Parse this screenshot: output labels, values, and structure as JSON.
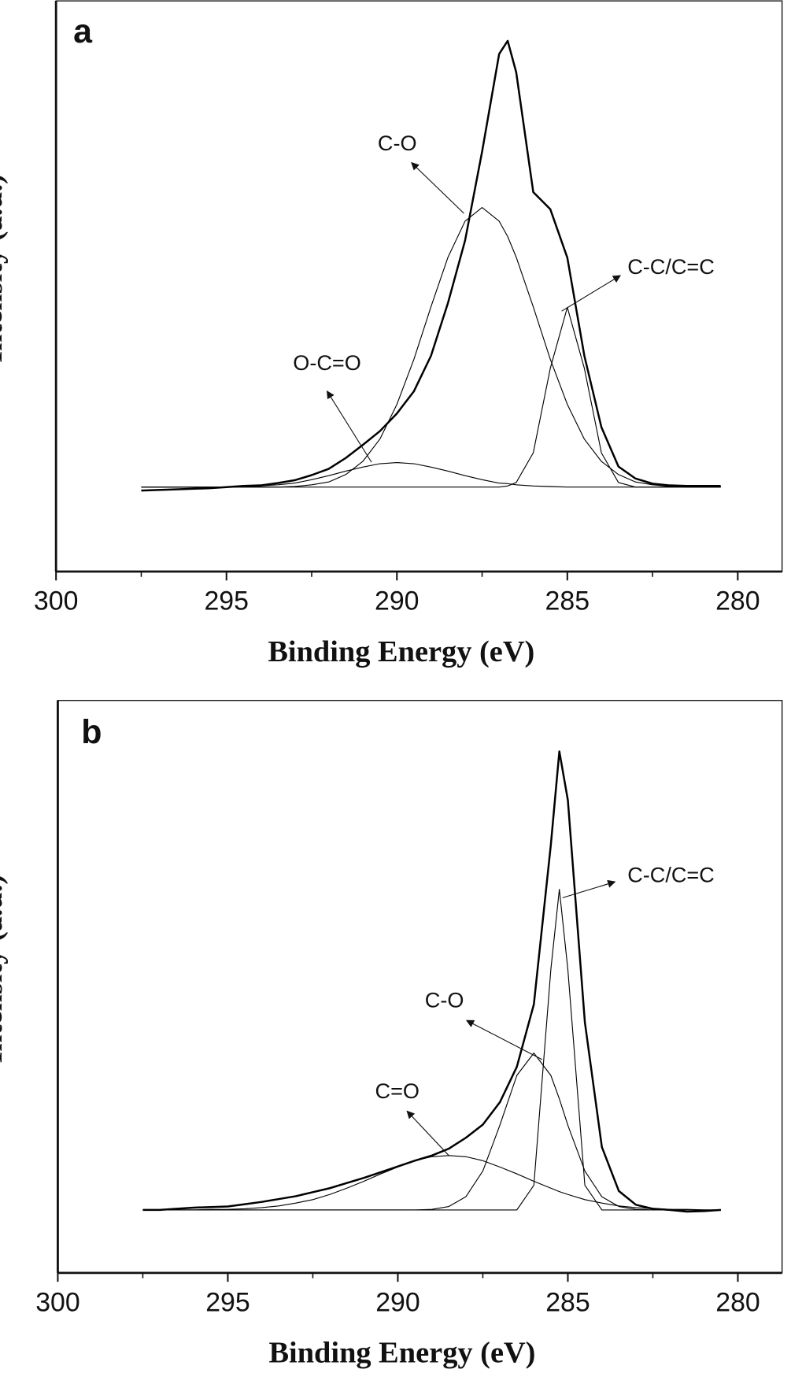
{
  "chart_data": [
    {
      "type": "line",
      "panel_label": "a",
      "xlabel": "Binding Energy (eV)",
      "ylabel": "Intensity (a.u.)",
      "xlim": [
        300,
        278.7
      ],
      "ylim": [
        0,
        100
      ],
      "xticks": [
        300,
        295,
        290,
        285,
        280
      ],
      "xminorticks": [
        297.5,
        292.5,
        287.5,
        282.5
      ],
      "legend": false,
      "color": "#000000",
      "x": [
        297.5,
        297,
        296.5,
        296,
        295.5,
        295,
        294.5,
        294,
        293.5,
        293,
        292.5,
        292,
        291.5,
        291,
        290.5,
        290,
        289.5,
        289,
        288.5,
        288,
        287.5,
        287,
        286.75,
        286.5,
        286,
        285.5,
        285,
        284.5,
        284,
        283.5,
        283,
        282.5,
        282,
        281.5,
        281,
        280.5
      ],
      "series": [
        {
          "values": [
            14.2,
            14.3,
            14.4,
            14.5,
            14.6,
            14.8,
            15.0,
            15.1,
            15.5,
            16.0,
            16.9,
            18.0,
            19.9,
            22.2,
            24.6,
            27.7,
            31.6,
            37.8,
            47.1,
            58.0,
            73.6,
            90.7,
            93.0,
            87.5,
            66.5,
            63.5,
            55.0,
            37.8,
            25.3,
            18.4,
            16.3,
            15.4,
            15.1,
            15.0,
            15.0,
            15.0
          ]
        },
        {
          "name": "O-C=O",
          "values": [
            14.8,
            14.8,
            14.8,
            14.8,
            14.8,
            14.8,
            14.9,
            15.0,
            15.2,
            15.5,
            16.1,
            16.8,
            17.6,
            18.3,
            18.9,
            19.1,
            18.9,
            18.3,
            17.6,
            16.8,
            16.1,
            15.5,
            15.4,
            15.2,
            15.0,
            14.9,
            14.8,
            14.8,
            14.8,
            14.8,
            14.8,
            14.8,
            14.8,
            14.8,
            14.8,
            14.8
          ]
        },
        {
          "name": "C-O",
          "values": [
            14.8,
            14.8,
            14.8,
            14.8,
            14.8,
            14.8,
            14.8,
            14.8,
            14.8,
            14.9,
            15.2,
            15.7,
            17.0,
            19.3,
            23.2,
            29.3,
            37.2,
            46.4,
            55.1,
            61.4,
            63.8,
            61.4,
            58.7,
            55.1,
            46.4,
            37.2,
            29.3,
            23.2,
            19.3,
            17.0,
            15.7,
            15.2,
            14.9,
            14.8,
            14.8,
            14.8
          ]
        },
        {
          "name": "C-C/C=C",
          "values": [
            14.8,
            14.8,
            14.8,
            14.8,
            14.8,
            14.8,
            14.8,
            14.8,
            14.8,
            14.8,
            14.8,
            14.8,
            14.8,
            14.8,
            14.8,
            14.8,
            14.8,
            14.8,
            14.8,
            14.8,
            14.8,
            14.8,
            15.0,
            15.6,
            20.8,
            35.6,
            46.3,
            35.6,
            20.8,
            15.6,
            14.8,
            14.8,
            14.8,
            14.8,
            14.8,
            14.8
          ]
        }
      ]
    },
    {
      "type": "line",
      "panel_label": "b",
      "xlabel": "Binding Energy (eV)",
      "ylabel": "Intensity (a.u.)",
      "xlim": [
        300,
        278.7
      ],
      "ylim": [
        0,
        100
      ],
      "xticks": [
        300,
        295,
        290,
        285,
        280
      ],
      "xminorticks": [
        297.5,
        292.5,
        287.5,
        282.5
      ],
      "legend": false,
      "color": "#000000",
      "x": [
        297.5,
        297,
        296.5,
        296,
        295.5,
        295,
        294.5,
        294,
        293.5,
        293,
        292.5,
        292,
        291.5,
        291,
        290.5,
        290,
        289.5,
        289,
        288.5,
        288,
        287.5,
        287,
        286.5,
        286,
        285.5,
        285.25,
        285,
        284.5,
        284,
        283.5,
        283,
        282.5,
        282,
        281.5,
        281,
        280.5
      ],
      "series": [
        {
          "values": [
            11.0,
            11.0,
            11.2,
            11.4,
            11.5,
            11.6,
            12.0,
            12.4,
            12.9,
            13.4,
            14.1,
            14.8,
            15.7,
            16.6,
            17.6,
            18.6,
            19.6,
            20.5,
            21.7,
            23.6,
            25.9,
            29.8,
            36.0,
            46.9,
            74.8,
            91.1,
            82.6,
            43.8,
            22.0,
            14.3,
            11.9,
            11.2,
            11.0,
            10.7,
            10.8,
            11.0
          ]
        },
        {
          "name": "C=O",
          "values": [
            11.0,
            11.0,
            11.0,
            11.0,
            11.1,
            11.1,
            11.2,
            11.4,
            11.7,
            12.2,
            12.8,
            13.7,
            14.8,
            16.0,
            17.3,
            18.5,
            19.6,
            20.3,
            20.5,
            20.3,
            19.6,
            18.5,
            17.3,
            16.0,
            14.8,
            14.2,
            13.7,
            12.8,
            12.2,
            11.7,
            11.4,
            11.2,
            11.1,
            11.1,
            11.0,
            11.0
          ]
        },
        {
          "name": "C-O",
          "values": [
            11.0,
            11.0,
            11.0,
            11.0,
            11.0,
            11.0,
            11.0,
            11.0,
            11.0,
            11.0,
            11.0,
            11.0,
            11.0,
            11.0,
            11.0,
            11.0,
            11.0,
            11.1,
            11.6,
            13.3,
            17.8,
            25.8,
            34.5,
            38.4,
            34.5,
            30.4,
            25.8,
            17.8,
            13.3,
            11.6,
            11.1,
            11.0,
            11.0,
            11.0,
            11.0,
            11.0
          ]
        },
        {
          "name": "C-C/C=C",
          "values": [
            11.0,
            11.0,
            11.0,
            11.0,
            11.0,
            11.0,
            11.0,
            11.0,
            11.0,
            11.0,
            11.0,
            11.0,
            11.0,
            11.0,
            11.0,
            11.0,
            11.0,
            11.0,
            11.0,
            11.0,
            11.0,
            11.0,
            11.0,
            15.3,
            53.0,
            67.0,
            53.0,
            15.3,
            11.0,
            11.0,
            11.0,
            11.0,
            11.0,
            11.0,
            11.0,
            11.0
          ]
        }
      ]
    }
  ]
}
